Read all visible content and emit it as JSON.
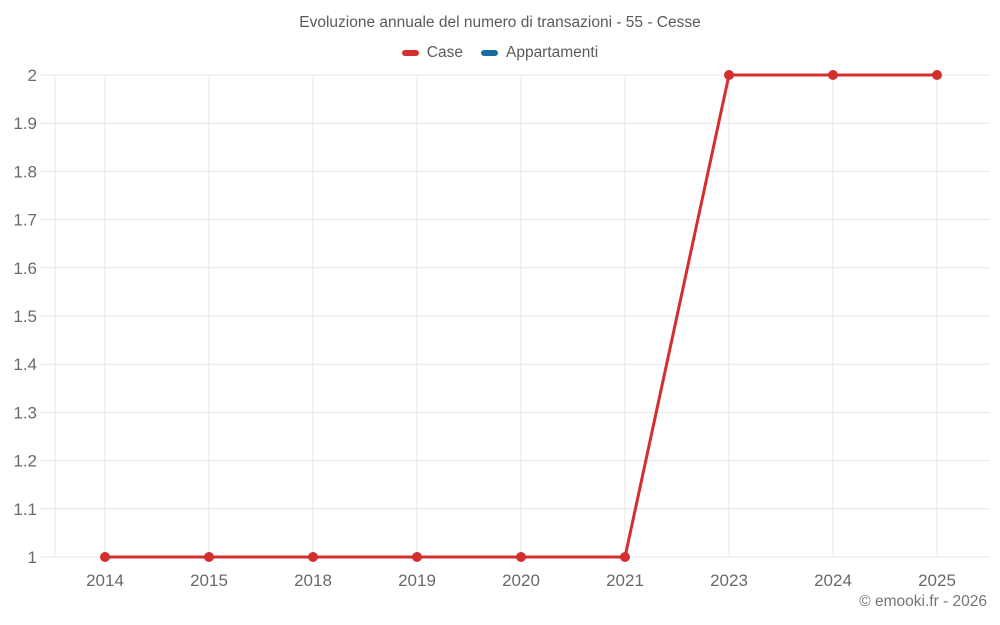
{
  "chart_data": {
    "type": "line",
    "title": "Evoluzione annuale del numero di transazioni - 55 - Cesse",
    "categories": [
      "2014",
      "2015",
      "2018",
      "2019",
      "2020",
      "2021",
      "2023",
      "2024",
      "2025"
    ],
    "series": [
      {
        "name": "Case",
        "color": "#d32f2f",
        "values": [
          1,
          1,
          1,
          1,
          1,
          1,
          2,
          2,
          2
        ]
      },
      {
        "name": "Appartamenti",
        "color": "#176ca0",
        "values": []
      }
    ],
    "xlabel": "",
    "ylabel": "",
    "ylim": [
      1,
      2
    ],
    "ytick_step": 0.1,
    "yticks": [
      1,
      1.1,
      1.2,
      1.3,
      1.4,
      1.5,
      1.6,
      1.7,
      1.8,
      1.9,
      2
    ],
    "grid": true,
    "legend_position": "top",
    "grid_color": "#e7e7e7",
    "tick_label_color": "#6a6a6a",
    "point_radius": 5,
    "line_width": 3
  },
  "footer": {
    "copyright": "© emooki.fr - 2026"
  }
}
